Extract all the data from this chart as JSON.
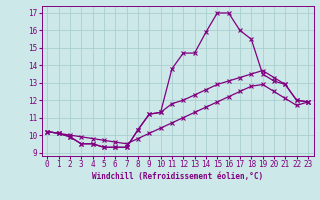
{
  "xlabel": "Windchill (Refroidissement éolien,°C)",
  "background_color": "#cce8e8",
  "grid_color": "#aacece",
  "line_color": "#800080",
  "spine_color": "#800080",
  "xlim": [
    -0.5,
    23.5
  ],
  "ylim": [
    8.8,
    17.4
  ],
  "yticks": [
    9,
    10,
    11,
    12,
    13,
    14,
    15,
    16,
    17
  ],
  "xticks": [
    0,
    1,
    2,
    3,
    4,
    5,
    6,
    7,
    8,
    9,
    10,
    11,
    12,
    13,
    14,
    15,
    16,
    17,
    18,
    19,
    20,
    21,
    22,
    23
  ],
  "line1_x": [
    0,
    1,
    2,
    3,
    4,
    5,
    6,
    7,
    8,
    9,
    10,
    11,
    12,
    13,
    14,
    15,
    16,
    17,
    18,
    19,
    20,
    21,
    22,
    23
  ],
  "line1_y": [
    10.2,
    10.1,
    9.9,
    9.5,
    9.5,
    9.3,
    9.3,
    9.3,
    10.3,
    11.2,
    11.3,
    13.8,
    14.7,
    14.7,
    15.9,
    17.0,
    17.0,
    16.0,
    15.5,
    13.5,
    13.1,
    12.9,
    12.0,
    11.9
  ],
  "line2_x": [
    0,
    1,
    2,
    3,
    4,
    5,
    6,
    7,
    8,
    9,
    10,
    11,
    12,
    13,
    14,
    15,
    16,
    17,
    18,
    19,
    20,
    21,
    22,
    23
  ],
  "line2_y": [
    10.2,
    10.1,
    9.9,
    9.5,
    9.5,
    9.3,
    9.3,
    9.3,
    10.3,
    11.2,
    11.3,
    11.8,
    12.0,
    12.3,
    12.6,
    12.9,
    13.1,
    13.3,
    13.5,
    13.7,
    13.3,
    12.9,
    12.0,
    11.9
  ],
  "line3_x": [
    0,
    1,
    2,
    3,
    4,
    5,
    6,
    7,
    8,
    9,
    10,
    11,
    12,
    13,
    14,
    15,
    16,
    17,
    18,
    19,
    20,
    21,
    22,
    23
  ],
  "line3_y": [
    10.2,
    10.1,
    10.0,
    9.9,
    9.8,
    9.7,
    9.6,
    9.5,
    9.8,
    10.1,
    10.4,
    10.7,
    11.0,
    11.3,
    11.6,
    11.9,
    12.2,
    12.5,
    12.8,
    12.9,
    12.5,
    12.1,
    11.7,
    11.9
  ],
  "tick_fontsize": 5.5,
  "xlabel_fontsize": 5.5,
  "marker_size": 2.5,
  "line_width": 0.9
}
